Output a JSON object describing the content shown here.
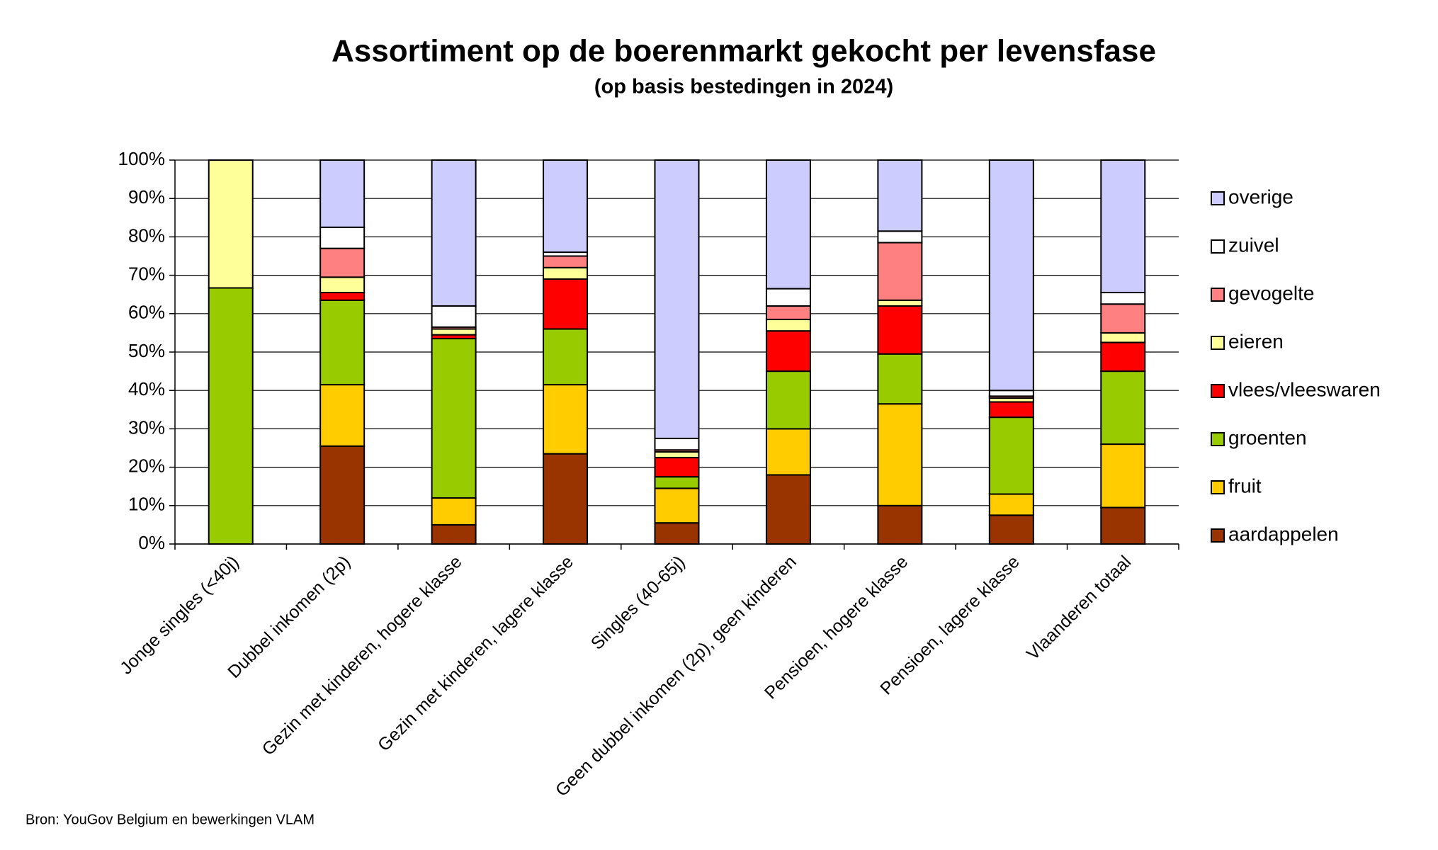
{
  "chart_data": {
    "type": "stacked_bar",
    "title": "Assortiment op de boerenmarkt gekocht per levensfase",
    "subtitle": "(op basis bestedingen in 2024)",
    "source": "Bron: YouGov Belgium en bewerkingen VLAM",
    "categories": [
      "Jonge singles (<40j)",
      "Dubbel inkomen (2p)",
      "Gezin met kinderen, hogere klasse",
      "Gezin met kinderen, lagere klasse",
      "Singles (40-65j)",
      "Geen dubbel inkomen (2p), geen kinderen",
      "Pensioen, hogere klasse",
      "Pensioen, lagere klasse",
      "Vlaanderen totaal"
    ],
    "series": [
      {
        "name": "aardappelen",
        "color": "#993300",
        "values": [
          0,
          25.5,
          5,
          23.5,
          5.5,
          18,
          10,
          7.5,
          9.5
        ]
      },
      {
        "name": "fruit",
        "color": "#ffcc00",
        "values": [
          0,
          16,
          7,
          18,
          9,
          12,
          26.5,
          5.5,
          16.5
        ]
      },
      {
        "name": "groenten",
        "color": "#99cc00",
        "values": [
          66.7,
          22,
          41.5,
          14.5,
          3,
          15,
          13,
          20,
          19
        ]
      },
      {
        "name": "vlees/vleeswaren",
        "color": "#ff0000",
        "values": [
          0,
          2,
          1,
          13,
          5,
          10.5,
          12.5,
          4,
          7.5
        ]
      },
      {
        "name": "eieren",
        "color": "#ffff99",
        "values": [
          33.3,
          4,
          1.5,
          3,
          1.5,
          3,
          1.5,
          1,
          2.5
        ]
      },
      {
        "name": "gevogelte",
        "color": "#ff8080",
        "values": [
          0,
          7.5,
          0.5,
          3,
          0.5,
          3.5,
          15,
          0.5,
          7.5
        ]
      },
      {
        "name": "zuivel",
        "color": "#ffffff",
        "values": [
          0,
          5.5,
          5.5,
          1,
          3,
          4.5,
          3,
          1.5,
          3
        ]
      },
      {
        "name": "overige",
        "color": "#ccccff",
        "values": [
          0,
          17.5,
          38,
          24,
          72.5,
          33.5,
          18.5,
          60,
          34.5
        ]
      }
    ],
    "ylim": [
      0,
      100
    ],
    "yticks": [
      {
        "value": 0,
        "label": "0%"
      },
      {
        "value": 10,
        "label": "10%"
      },
      {
        "value": 20,
        "label": "20%"
      },
      {
        "value": 30,
        "label": "30%"
      },
      {
        "value": 40,
        "label": "40%"
      },
      {
        "value": 50,
        "label": "50%"
      },
      {
        "value": 60,
        "label": "60%"
      },
      {
        "value": 70,
        "label": "70%"
      },
      {
        "value": 80,
        "label": "80%"
      },
      {
        "value": 90,
        "label": "90%"
      },
      {
        "value": 100,
        "label": "100%"
      }
    ],
    "grid": true
  }
}
